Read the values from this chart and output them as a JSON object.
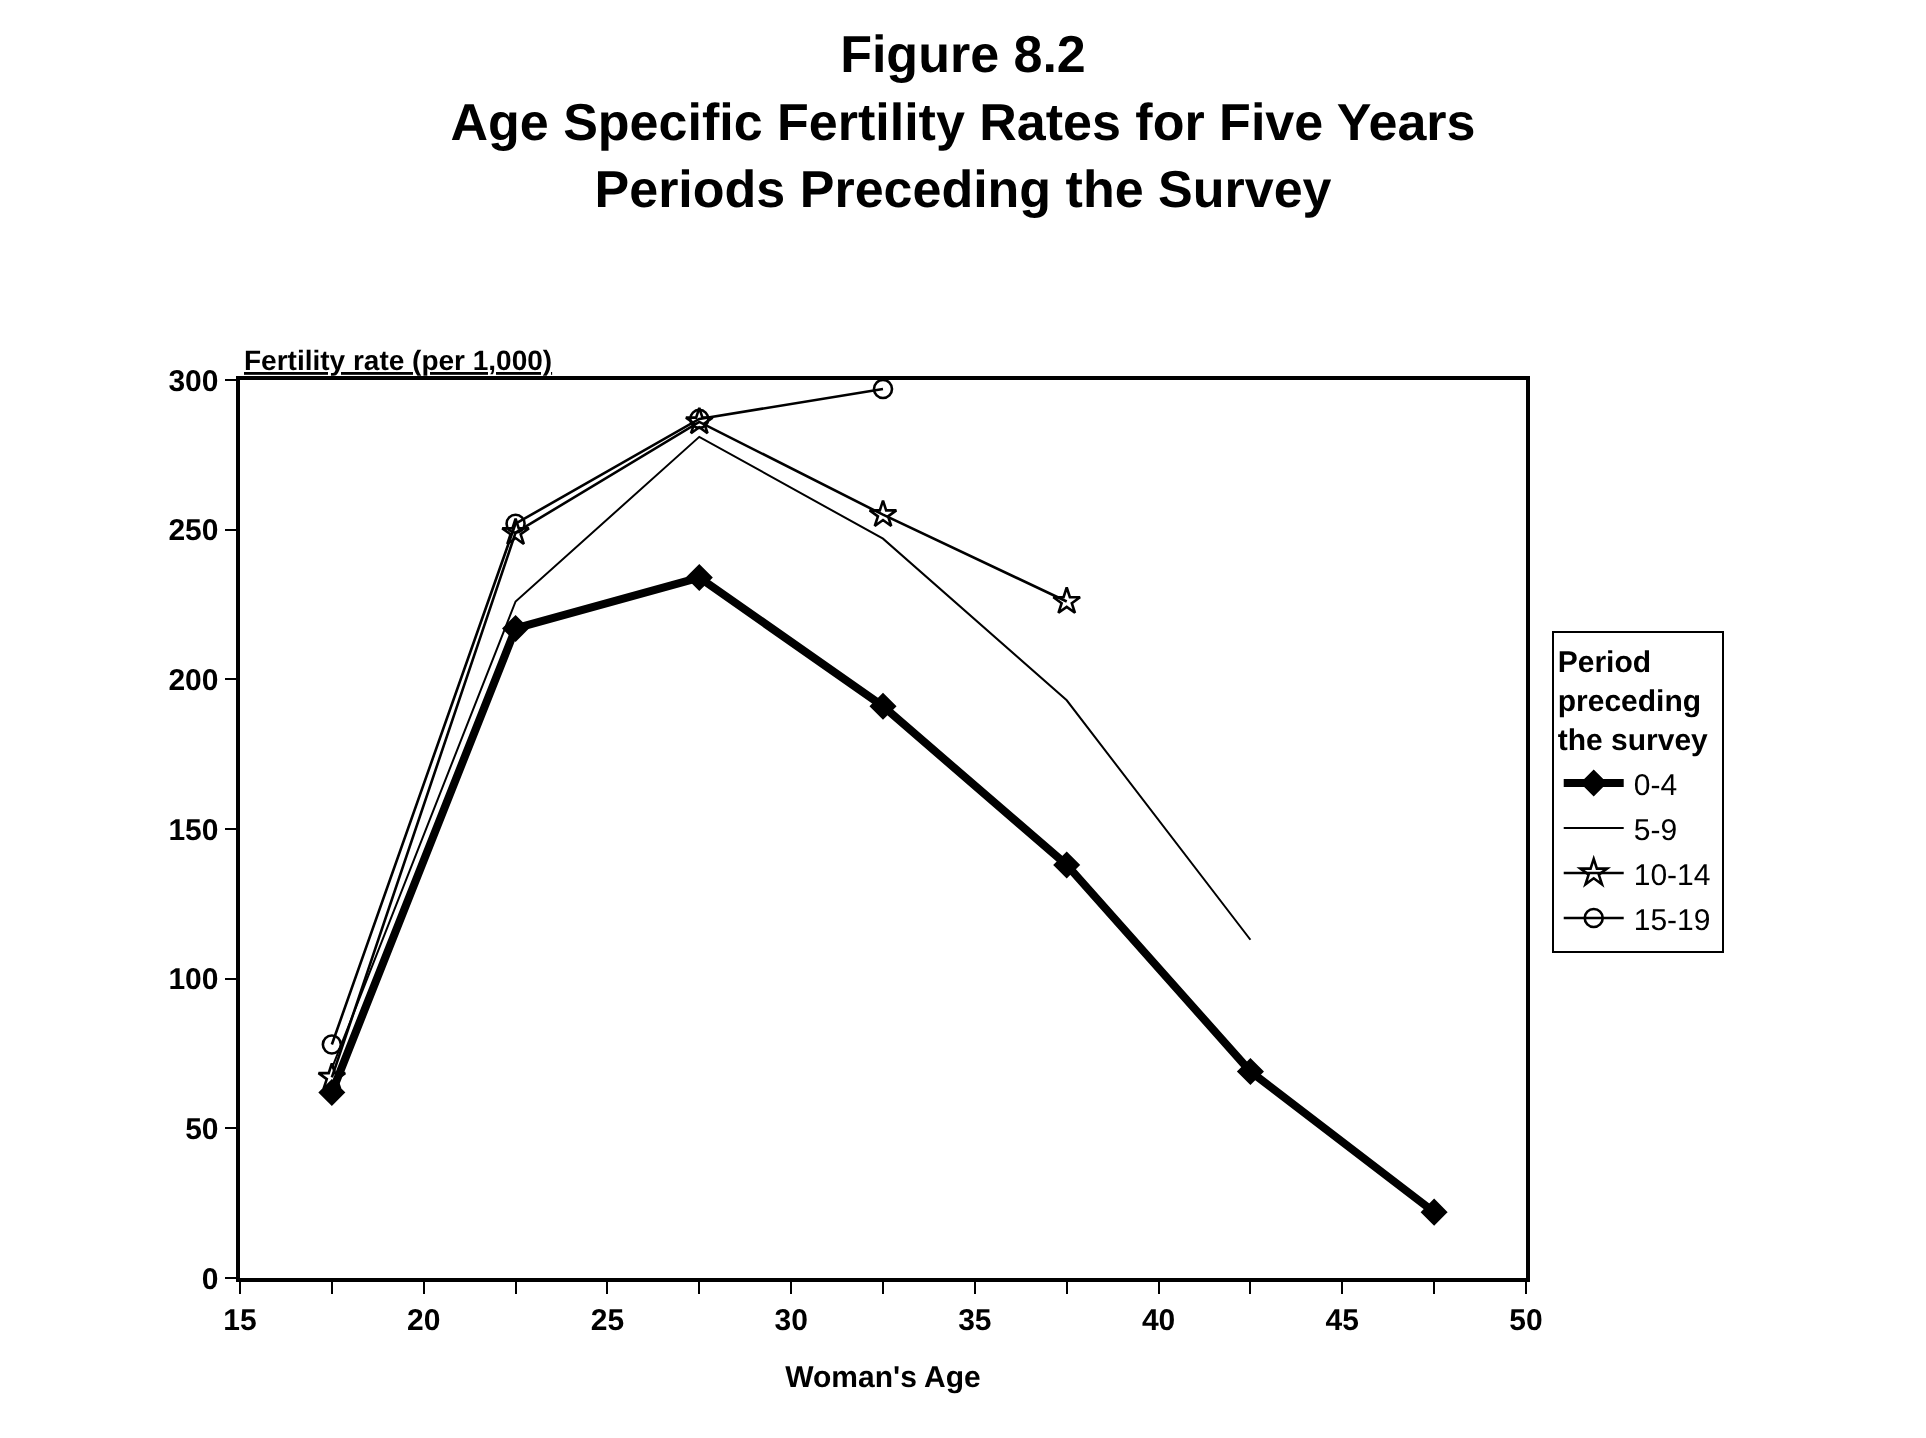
{
  "chart_data": {
    "type": "line",
    "title": "Figure 8.2\nAge Specific Fertility Rates for Five Years\nPeriods Preceding the Survey",
    "xlabel": "Woman's Age",
    "ylabel": "Fertility rate (per 1,000)",
    "legend_title": "Period\npreceding\nthe survey",
    "legend": "right",
    "x": [
      17.5,
      22.5,
      27.5,
      32.5,
      37.5,
      42.5,
      47.5
    ],
    "series": [
      {
        "name": "0-4",
        "color": "#000000",
        "marker": "diamond",
        "values": [
          62,
          217,
          234,
          191,
          138,
          69,
          22
        ]
      },
      {
        "name": "5-9",
        "color": "#000000",
        "marker": "none",
        "values": [
          70,
          226,
          281,
          247,
          193,
          113,
          null
        ]
      },
      {
        "name": "10-14",
        "color": "#000000",
        "marker": "star",
        "values": [
          67,
          249,
          286,
          255,
          226,
          null,
          null
        ]
      },
      {
        "name": "15-19",
        "color": "#000000",
        "marker": "circle",
        "values": [
          78,
          252,
          287,
          297,
          null,
          null,
          null
        ]
      }
    ],
    "xlim": [
      15,
      50
    ],
    "xticks": [
      15,
      {
        "value": 17.5,
        "label": null
      },
      20,
      {
        "value": 22.5,
        "label": null
      },
      25,
      {
        "value": 27.5,
        "label": null
      },
      30,
      {
        "value": 32.5,
        "label": null
      },
      35,
      {
        "value": 37.5,
        "label": null
      },
      40,
      {
        "value": 42.5,
        "label": null
      },
      45,
      {
        "value": 47.5,
        "label": null
      },
      50
    ],
    "ylim": [
      0,
      300
    ],
    "yticks": [
      0,
      50,
      100,
      150,
      200,
      250,
      300
    ]
  }
}
